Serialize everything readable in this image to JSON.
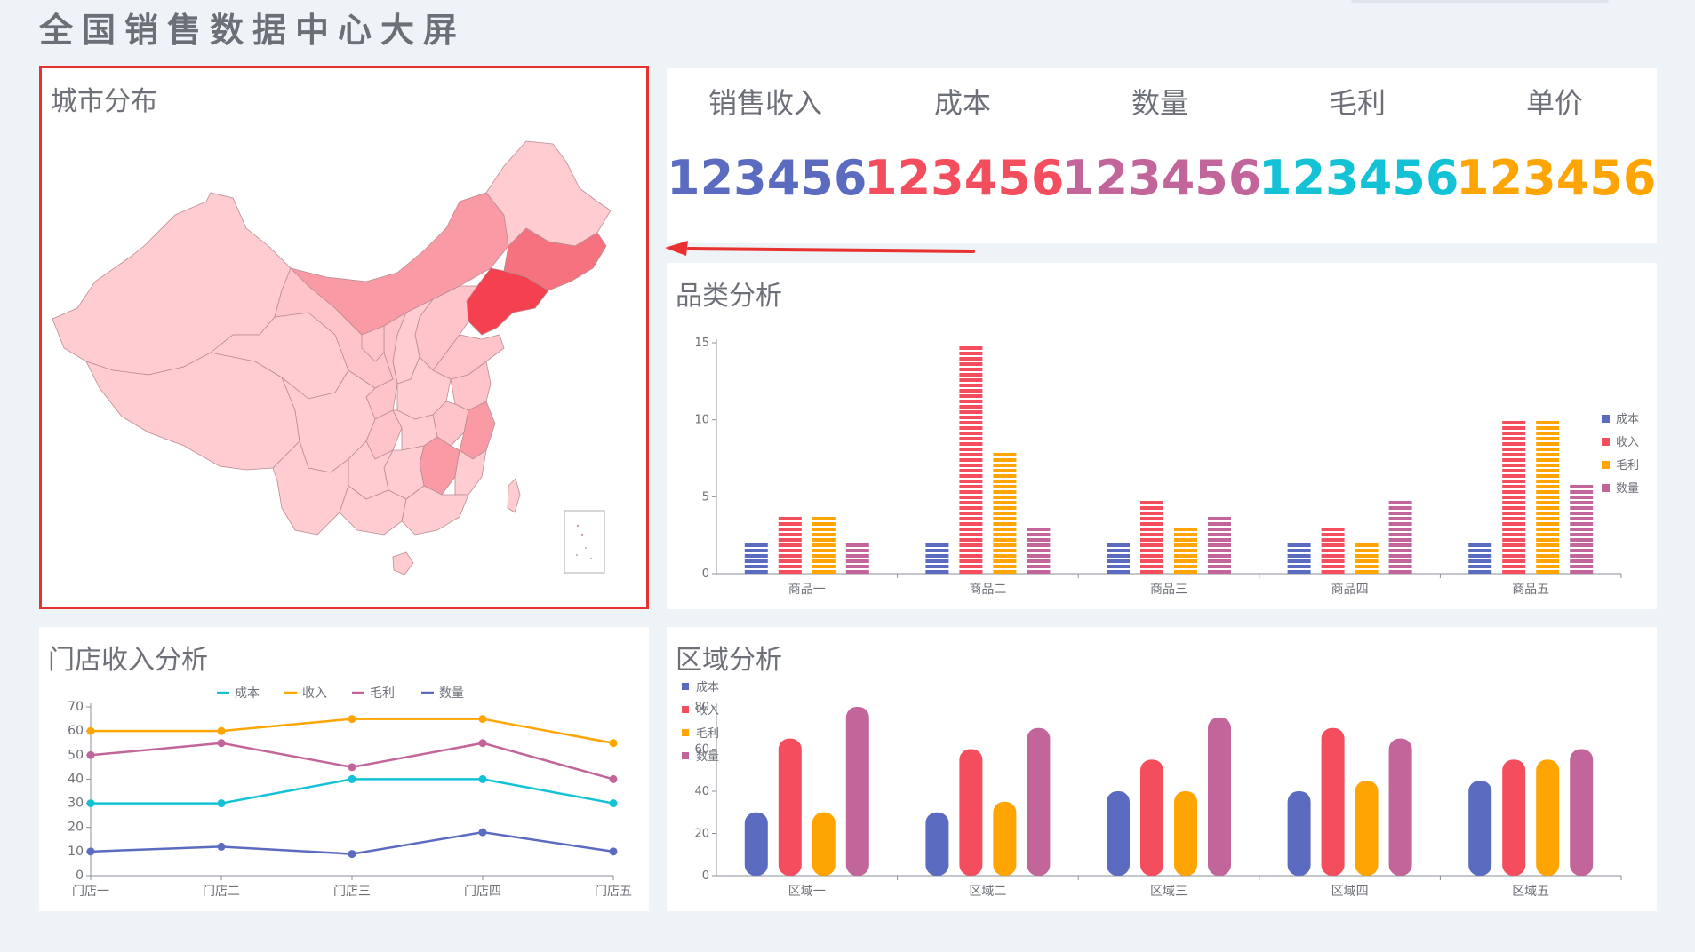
{
  "page": {
    "title": "全国销售数据中心大屏"
  },
  "colors": {
    "cost": "#5b6bc0",
    "income": "#f44d5e",
    "profit": "#fea504",
    "qty": "#c2659a",
    "cyan": "#14c2d6",
    "frame": "#e8322f",
    "arrow": "#e8322f"
  },
  "map_panel": {
    "title": "城市分布"
  },
  "kpis": [
    {
      "label": "销售收入",
      "value": "123456",
      "color": "#5b6bc0"
    },
    {
      "label": "成本",
      "value": "123456",
      "color": "#f44d5e"
    },
    {
      "label": "数量",
      "value": "123456",
      "color": "#c2659a"
    },
    {
      "label": "毛利",
      "value": "123456",
      "color": "#14c2d6"
    },
    {
      "label": "单价",
      "value": "123456",
      "color": "#fea504"
    }
  ],
  "category_panel": {
    "title": "品类分析"
  },
  "store_panel": {
    "title": "门店收入分析"
  },
  "region_panel": {
    "title": "区域分析"
  },
  "chart_data": [
    {
      "id": "category",
      "type": "bar",
      "categories": [
        "商品一",
        "商品二",
        "商品三",
        "商品四",
        "商品五"
      ],
      "series": [
        {
          "name": "成本",
          "values": [
            2,
            2,
            2,
            2,
            2
          ],
          "color": "#5b6bc0"
        },
        {
          "name": "收入",
          "values": [
            4,
            15,
            5,
            3,
            10
          ],
          "color": "#f44d5e"
        },
        {
          "name": "毛利",
          "values": [
            4,
            8,
            3,
            2,
            10
          ],
          "color": "#fea504"
        },
        {
          "name": "数量",
          "values": [
            2,
            3,
            4,
            5,
            6
          ],
          "color": "#c2659a"
        }
      ],
      "ylim": [
        0,
        15
      ],
      "yticks": [
        0,
        5,
        10,
        15
      ],
      "legend": "right",
      "style": "striped"
    },
    {
      "id": "store",
      "type": "line",
      "categories": [
        "门店一",
        "门店二",
        "门店三",
        "门店四",
        "门店五"
      ],
      "series": [
        {
          "name": "成本",
          "values": [
            30,
            30,
            40,
            40,
            30
          ],
          "color": "#14c2d6"
        },
        {
          "name": "收入",
          "values": [
            60,
            60,
            65,
            65,
            55
          ],
          "color": "#fea504"
        },
        {
          "name": "毛利",
          "values": [
            50,
            55,
            45,
            55,
            40
          ],
          "color": "#c2659a"
        },
        {
          "name": "数量",
          "values": [
            10,
            12,
            9,
            18,
            10
          ],
          "color": "#5b6bc0"
        }
      ],
      "ylim": [
        0,
        70
      ],
      "yticks": [
        0,
        10,
        20,
        30,
        40,
        50,
        60,
        70
      ],
      "legend": "top"
    },
    {
      "id": "region",
      "type": "bar",
      "categories": [
        "区域一",
        "区域二",
        "区域三",
        "区域四",
        "区域五"
      ],
      "series": [
        {
          "name": "成本",
          "values": [
            30,
            30,
            40,
            40,
            45
          ],
          "color": "#5b6bc0"
        },
        {
          "name": "收入",
          "values": [
            65,
            60,
            55,
            70,
            55
          ],
          "color": "#f44d5e"
        },
        {
          "name": "毛利",
          "values": [
            30,
            35,
            40,
            45,
            55
          ],
          "color": "#fea504"
        },
        {
          "name": "数量",
          "values": [
            80,
            70,
            75,
            65,
            60
          ],
          "color": "#c2659a"
        }
      ],
      "ylim": [
        0,
        80
      ],
      "yticks": [
        0,
        20,
        40,
        60,
        80
      ],
      "legend": "top-left",
      "style": "rounded"
    }
  ]
}
